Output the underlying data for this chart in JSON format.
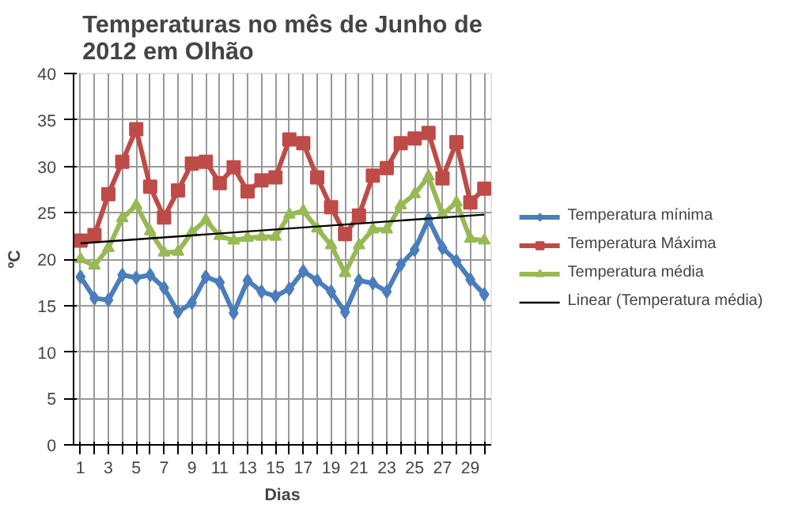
{
  "chart_data": {
    "type": "line",
    "title": "Temperaturas no mês de Junho de 2012 em Olhão",
    "xlabel": "Dias",
    "ylabel": "ºC",
    "x": [
      1,
      2,
      3,
      4,
      5,
      6,
      7,
      8,
      9,
      10,
      11,
      12,
      13,
      14,
      15,
      16,
      17,
      18,
      19,
      20,
      21,
      22,
      23,
      24,
      25,
      26,
      27,
      28,
      29,
      30
    ],
    "xlim": [
      0.5,
      30.5
    ],
    "xticks": [
      1,
      {
        "value": 2,
        "label": null
      },
      3,
      {
        "value": 4,
        "label": null
      },
      5,
      {
        "value": 6,
        "label": null
      },
      7,
      {
        "value": 8,
        "label": null
      },
      9,
      {
        "value": 10,
        "label": null
      },
      11,
      {
        "value": 12,
        "label": null
      },
      13,
      {
        "value": 14,
        "label": null
      },
      15,
      {
        "value": 16,
        "label": null
      },
      17,
      {
        "value": 18,
        "label": null
      },
      19,
      {
        "value": 20,
        "label": null
      },
      21,
      {
        "value": 22,
        "label": null
      },
      23,
      {
        "value": 24,
        "label": null
      },
      25,
      {
        "value": 26,
        "label": null
      },
      27,
      {
        "value": 28,
        "label": null
      },
      29,
      {
        "value": 30,
        "label": null
      }
    ],
    "ylim": [
      0,
      40
    ],
    "yticks": [
      0,
      5,
      10,
      15,
      20,
      25,
      30,
      35,
      40
    ],
    "grid": true,
    "legend": "right",
    "series": [
      {
        "name": "Temperatura mínima",
        "color": "#4a7ebb",
        "marker": "diamond",
        "values": [
          18.1,
          15.8,
          15.6,
          18.3,
          18.0,
          18.3,
          16.9,
          14.3,
          15.3,
          18.1,
          17.5,
          14.2,
          17.7,
          16.5,
          16.0,
          16.8,
          18.7,
          17.7,
          16.5,
          14.3,
          17.7,
          17.4,
          16.5,
          19.4,
          21.0,
          24.3,
          21.2,
          19.8,
          17.8,
          16.2
        ]
      },
      {
        "name": "Temperatura Máxima",
        "color": "#be4b48",
        "marker": "square",
        "values": [
          22.0,
          22.6,
          27.0,
          30.5,
          34.0,
          27.8,
          24.5,
          27.4,
          30.3,
          30.5,
          28.2,
          29.9,
          27.3,
          28.5,
          28.8,
          32.9,
          32.5,
          28.8,
          25.6,
          22.7,
          24.7,
          29.0,
          29.8,
          32.5,
          33.0,
          33.6,
          28.7,
          32.6,
          26.1,
          27.6
        ]
      },
      {
        "name": "Temperatura média",
        "color": "#98b954",
        "marker": "triangle",
        "values": [
          20.0,
          19.3,
          21.2,
          24.4,
          25.8,
          23.0,
          20.7,
          20.8,
          22.9,
          24.2,
          22.5,
          22.0,
          22.3,
          22.4,
          22.4,
          24.8,
          25.2,
          23.3,
          21.5,
          18.5,
          21.5,
          23.2,
          23.2,
          25.8,
          27.0,
          28.9,
          24.8,
          26.1,
          22.2,
          22.0
        ]
      },
      {
        "name": "Linear (Temperatura média)",
        "color": "#000000",
        "marker": "none",
        "x": [
          1,
          30
        ],
        "values": [
          21.7,
          24.8
        ]
      }
    ]
  }
}
